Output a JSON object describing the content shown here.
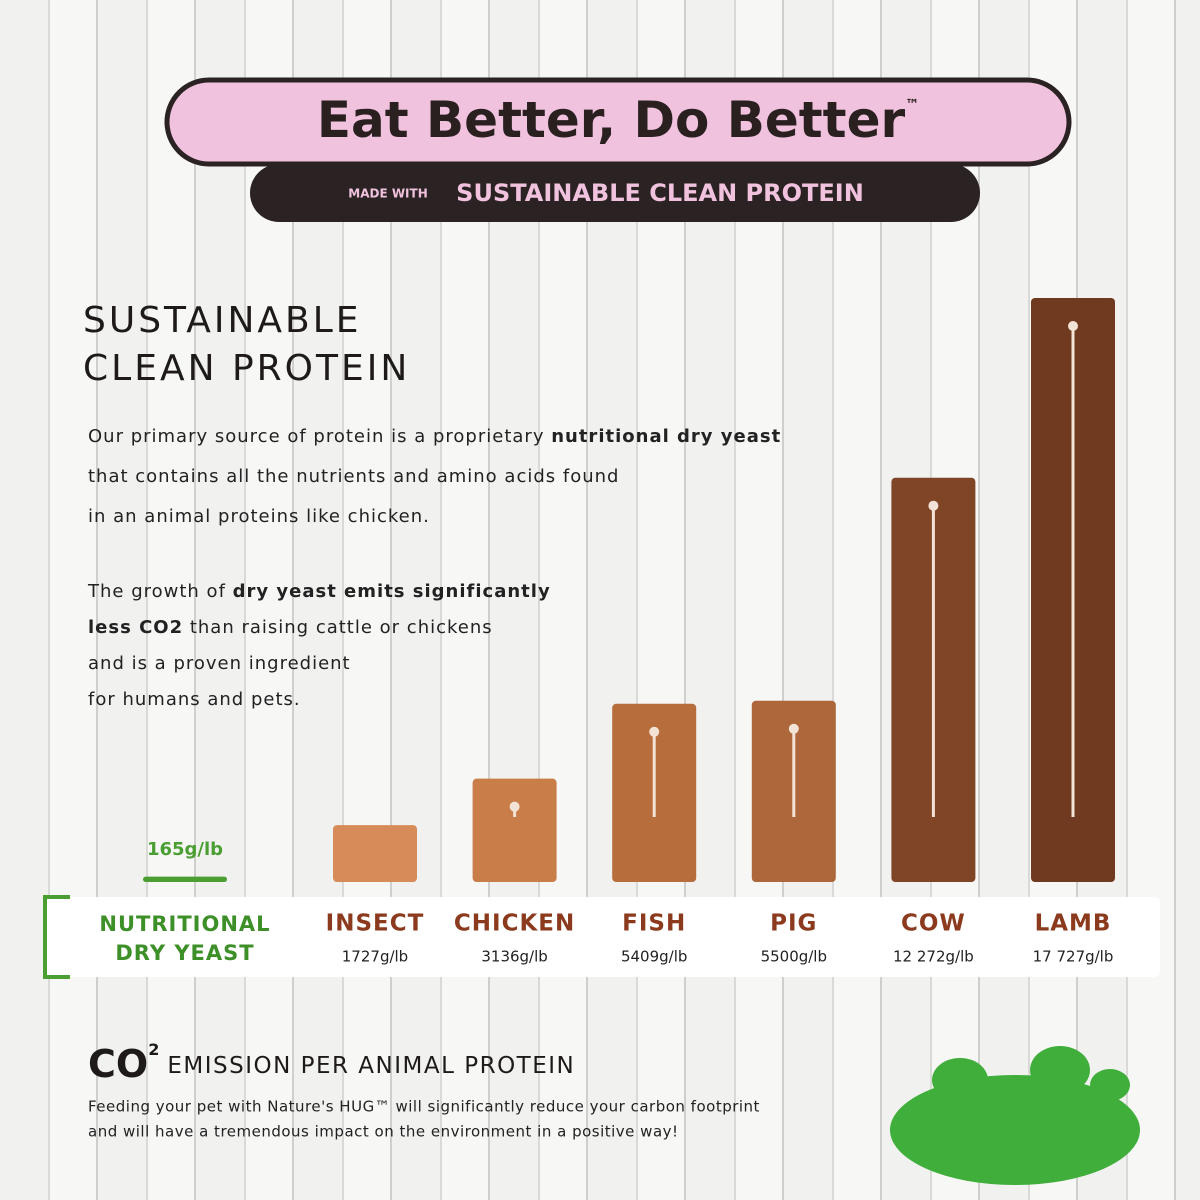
{
  "header": {
    "title": "Eat Better, Do Better",
    "trademark": "™",
    "made_with": "MADE WITH",
    "banner": "SUSTAINABLE CLEAN PROTEIN"
  },
  "section": {
    "title_lines": [
      "SUSTAINABLE",
      "CLEAN PROTEIN"
    ],
    "paragraphs": [
      [
        [
          {
            "text": "Our primary source of protein is a proprietary ",
            "bold": false
          },
          {
            "text": "nutritional dry yeast",
            "bold": true
          }
        ],
        [
          {
            "text": "that contains all the nutrients and amino acids found",
            "bold": false
          }
        ],
        [
          {
            "text": "in an animal proteins like chicken.",
            "bold": false
          }
        ]
      ],
      [
        [
          {
            "text": "The growth of ",
            "bold": false
          },
          {
            "text": "dry yeast emits significantly",
            "bold": true
          }
        ],
        [
          {
            "text": "less CO2",
            "bold": true
          },
          {
            "text": " than raising cattle or chickens",
            "bold": false
          }
        ],
        [
          {
            "text": "and is a proven ingredient",
            "bold": false
          }
        ],
        [
          {
            "text": "for humans and pets.",
            "bold": false
          }
        ]
      ]
    ]
  },
  "chart_data": {
    "type": "bar",
    "reference": {
      "name": "NUTRITIONAL DRY YEAST",
      "value": 165,
      "value_label": "165g/lb",
      "color": "#4a9e32"
    },
    "categories": [
      "INSECT",
      "CHICKEN",
      "FISH",
      "PIG",
      "COW",
      "LAMB"
    ],
    "values": [
      1727,
      3136,
      5409,
      5500,
      12272,
      17727
    ],
    "value_labels": [
      "1727g/lb",
      "3136g/lb",
      "5409g/lb",
      "5500g/lb",
      "12 272g/lb",
      "17 727g/lb"
    ],
    "colors": [
      "#d68b58",
      "#c97d48",
      "#b86d3d",
      "#ad673a",
      "#804526",
      "#6f3a1f"
    ]
  },
  "footer": {
    "co": "CO",
    "sup": "2",
    "heading": "EMISSION PER ANIMAL PROTEIN",
    "lines": [
      "Feeding your pet with Nature's HUG™ will significantly reduce your carbon footprint",
      "and will have a tremendous impact on the environment in a positive way!"
    ]
  }
}
